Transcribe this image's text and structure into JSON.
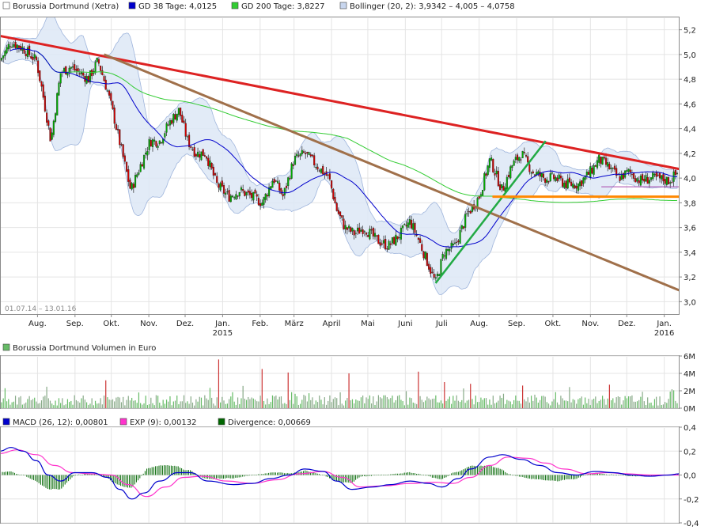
{
  "chart_data": {
    "type": "candlestick",
    "price_panel": {
      "legend": [
        {
          "label": "Borussia Dortmund (Xetra)",
          "color": "#ffffff"
        },
        {
          "label": "GD 38 Tage: 4,0125",
          "color": "#0000cc"
        },
        {
          "label": "GD 200 Tage: 3,8227",
          "color": "#33cc33"
        },
        {
          "label": "Bollinger (20, 2): 3,9342 – 4,005 – 4,0758",
          "color": "#c8d6ee"
        }
      ],
      "date_range": "01.07.14 – 13.01.16",
      "y_ticks": [
        "5,2",
        "5,0",
        "4,8",
        "4,6",
        "4,4",
        "4,2",
        "4,0",
        "3,8",
        "3,6",
        "3,4",
        "3,2",
        "3,0"
      ],
      "ylim": [
        2.9,
        5.3
      ],
      "x_month_labels": [
        "Aug.",
        "Sep.",
        "Okt.",
        "Nov.",
        "Dez.",
        "Jan.",
        "Feb.",
        "März",
        "April",
        "Mai",
        "Juni",
        "Juli",
        "Aug.",
        "Sep.",
        "Okt.",
        "Nov.",
        "Dez.",
        "Jan."
      ],
      "x_year_labels": [
        "2015",
        "2016"
      ],
      "close_series": [
        [
          "2014-07-01",
          4.95
        ],
        [
          "2014-07-10",
          5.1
        ],
        [
          "2014-07-20",
          5.05
        ],
        [
          "2014-07-31",
          4.95
        ],
        [
          "2014-08-05",
          4.7
        ],
        [
          "2014-08-12",
          4.3
        ],
        [
          "2014-08-20",
          4.85
        ],
        [
          "2014-08-28",
          4.9
        ],
        [
          "2014-09-05",
          4.85
        ],
        [
          "2014-09-12",
          4.8
        ],
        [
          "2014-09-20",
          4.95
        ],
        [
          "2014-09-28",
          4.7
        ],
        [
          "2014-10-03",
          4.5
        ],
        [
          "2014-10-10",
          4.2
        ],
        [
          "2014-10-17",
          3.9
        ],
        [
          "2014-10-25",
          4.1
        ],
        [
          "2014-11-02",
          4.3
        ],
        [
          "2014-11-10",
          4.3
        ],
        [
          "2014-11-18",
          4.45
        ],
        [
          "2014-11-26",
          4.55
        ],
        [
          "2014-12-03",
          4.3
        ],
        [
          "2014-12-10",
          4.2
        ],
        [
          "2014-12-18",
          4.2
        ],
        [
          "2014-12-27",
          3.95
        ],
        [
          "2015-01-06",
          3.85
        ],
        [
          "2015-01-15",
          3.9
        ],
        [
          "2015-01-25",
          3.85
        ],
        [
          "2015-02-03",
          3.8
        ],
        [
          "2015-02-12",
          4.0
        ],
        [
          "2015-02-20",
          3.85
        ],
        [
          "2015-03-01",
          4.15
        ],
        [
          "2015-03-10",
          4.2
        ],
        [
          "2015-03-20",
          4.1
        ],
        [
          "2015-03-30",
          4.0
        ],
        [
          "2015-04-05",
          3.75
        ],
        [
          "2015-04-12",
          3.6
        ],
        [
          "2015-04-20",
          3.55
        ],
        [
          "2015-04-28",
          3.6
        ],
        [
          "2015-05-08",
          3.5
        ],
        [
          "2015-05-18",
          3.45
        ],
        [
          "2015-05-28",
          3.55
        ],
        [
          "2015-06-05",
          3.65
        ],
        [
          "2015-06-12",
          3.5
        ],
        [
          "2015-06-20",
          3.3
        ],
        [
          "2015-06-26",
          3.15
        ],
        [
          "2015-07-03",
          3.4
        ],
        [
          "2015-07-12",
          3.45
        ],
        [
          "2015-07-22",
          3.7
        ],
        [
          "2015-08-01",
          3.85
        ],
        [
          "2015-08-10",
          4.15
        ],
        [
          "2015-08-20",
          3.9
        ],
        [
          "2015-08-28",
          4.1
        ],
        [
          "2015-09-05",
          4.2
        ],
        [
          "2015-09-14",
          4.05
        ],
        [
          "2015-09-24",
          4.0
        ],
        [
          "2015-10-03",
          4.0
        ],
        [
          "2015-10-12",
          3.95
        ],
        [
          "2015-10-22",
          3.95
        ],
        [
          "2015-11-01",
          4.05
        ],
        [
          "2015-11-08",
          4.15
        ],
        [
          "2015-11-15",
          4.1
        ],
        [
          "2015-11-24",
          4.0
        ],
        [
          "2015-12-03",
          4.05
        ],
        [
          "2015-12-12",
          3.98
        ],
        [
          "2015-12-22",
          4.0
        ],
        [
          "2016-01-05",
          3.98
        ],
        [
          "2016-01-13",
          4.05
        ]
      ],
      "trend_lines": [
        {
          "color": "#dd2222",
          "from": [
            "2014-07-01",
            5.15
          ],
          "to": [
            "2016-01-13",
            4.05
          ]
        },
        {
          "color": "#a0704a",
          "from": [
            "2014-09-25",
            5.0
          ],
          "to": [
            "2016-01-13",
            3.0
          ]
        },
        {
          "color": "#22aa44",
          "from": [
            "2015-06-26",
            3.15
          ],
          "to": [
            "2015-09-25",
            4.3
          ]
        },
        {
          "color": "#ff8800",
          "from": [
            "2015-08-12",
            3.85
          ],
          "to": [
            "2016-01-13",
            3.85
          ]
        },
        {
          "color": "#aa44aa",
          "from": [
            "2015-11-10",
            3.93
          ],
          "to": [
            "2016-01-13",
            3.93
          ]
        }
      ]
    },
    "volume_panel": {
      "title": "Borussia Dortmund Volumen in Euro",
      "color": "#66bb66",
      "y_ticks": [
        "6M",
        "4M",
        "2M",
        "0M"
      ],
      "ylim": [
        0,
        6
      ]
    },
    "macd_panel": {
      "legend": [
        {
          "label": "MACD (26, 12): 0,00801",
          "color": "#0000cc"
        },
        {
          "label": "EXP (9): 0,00132",
          "color": "#ff33cc"
        },
        {
          "label": "Divergence: 0,00669",
          "color": "#006600"
        }
      ],
      "y_ticks": [
        "0,4",
        "0,2",
        "0,0",
        "-0,2",
        "-0,4"
      ],
      "ylim": [
        -0.4,
        0.4
      ],
      "macd_series": [
        [
          "2014-07-01",
          0.2
        ],
        [
          "2014-07-10",
          0.23
        ],
        [
          "2014-07-20",
          0.2
        ],
        [
          "2014-07-31",
          0.12
        ],
        [
          "2014-08-10",
          0.0
        ],
        [
          "2014-08-20",
          -0.05
        ],
        [
          "2014-09-01",
          0.02
        ],
        [
          "2014-09-15",
          0.02
        ],
        [
          "2014-09-28",
          -0.02
        ],
        [
          "2014-10-08",
          -0.12
        ],
        [
          "2014-10-18",
          -0.2
        ],
        [
          "2014-10-28",
          -0.15
        ],
        [
          "2014-11-10",
          -0.05
        ],
        [
          "2014-11-25",
          0.02
        ],
        [
          "2014-12-05",
          0.02
        ],
        [
          "2014-12-20",
          -0.05
        ],
        [
          "2015-01-10",
          -0.08
        ],
        [
          "2015-01-25",
          -0.07
        ],
        [
          "2015-02-10",
          -0.03
        ],
        [
          "2015-02-25",
          0.0
        ],
        [
          "2015-03-10",
          0.05
        ],
        [
          "2015-03-25",
          0.03
        ],
        [
          "2015-04-05",
          -0.05
        ],
        [
          "2015-04-18",
          -0.12
        ],
        [
          "2015-05-05",
          -0.1
        ],
        [
          "2015-05-20",
          -0.08
        ],
        [
          "2015-06-05",
          -0.05
        ],
        [
          "2015-06-20",
          -0.07
        ],
        [
          "2015-07-01",
          -0.1
        ],
        [
          "2015-07-15",
          -0.03
        ],
        [
          "2015-07-25",
          0.05
        ],
        [
          "2015-08-10",
          0.15
        ],
        [
          "2015-08-20",
          0.17
        ],
        [
          "2015-09-05",
          0.13
        ],
        [
          "2015-09-20",
          0.08
        ],
        [
          "2015-10-05",
          0.02
        ],
        [
          "2015-10-20",
          0.0
        ],
        [
          "2015-11-05",
          0.03
        ],
        [
          "2015-11-20",
          0.02
        ],
        [
          "2015-12-05",
          0.0
        ],
        [
          "2015-12-20",
          -0.01
        ],
        [
          "2016-01-05",
          0.0
        ],
        [
          "2016-01-13",
          0.01
        ]
      ],
      "signal_series": [
        [
          "2014-07-01",
          0.18
        ],
        [
          "2014-07-15",
          0.21
        ],
        [
          "2014-07-31",
          0.17
        ],
        [
          "2014-08-15",
          0.08
        ],
        [
          "2014-08-30",
          0.02
        ],
        [
          "2014-09-15",
          0.01
        ],
        [
          "2014-10-01",
          0.0
        ],
        [
          "2014-10-15",
          -0.08
        ],
        [
          "2014-10-30",
          -0.18
        ],
        [
          "2014-11-15",
          -0.1
        ],
        [
          "2014-11-30",
          -0.02
        ],
        [
          "2014-12-15",
          -0.01
        ],
        [
          "2015-01-05",
          -0.05
        ],
        [
          "2015-01-25",
          -0.07
        ],
        [
          "2015-02-15",
          -0.04
        ],
        [
          "2015-03-05",
          0.01
        ],
        [
          "2015-03-25",
          0.03
        ],
        [
          "2015-04-10",
          -0.02
        ],
        [
          "2015-04-25",
          -0.1
        ],
        [
          "2015-05-15",
          -0.09
        ],
        [
          "2015-06-05",
          -0.07
        ],
        [
          "2015-06-25",
          -0.06
        ],
        [
          "2015-07-10",
          -0.07
        ],
        [
          "2015-07-25",
          -0.02
        ],
        [
          "2015-08-10",
          0.08
        ],
        [
          "2015-08-25",
          0.15
        ],
        [
          "2015-09-10",
          0.14
        ],
        [
          "2015-09-25",
          0.1
        ],
        [
          "2015-10-10",
          0.05
        ],
        [
          "2015-10-30",
          0.01
        ],
        [
          "2015-11-15",
          0.02
        ],
        [
          "2015-12-01",
          0.01
        ],
        [
          "2015-12-20",
          0.0
        ],
        [
          "2016-01-13",
          0.0
        ]
      ]
    }
  }
}
